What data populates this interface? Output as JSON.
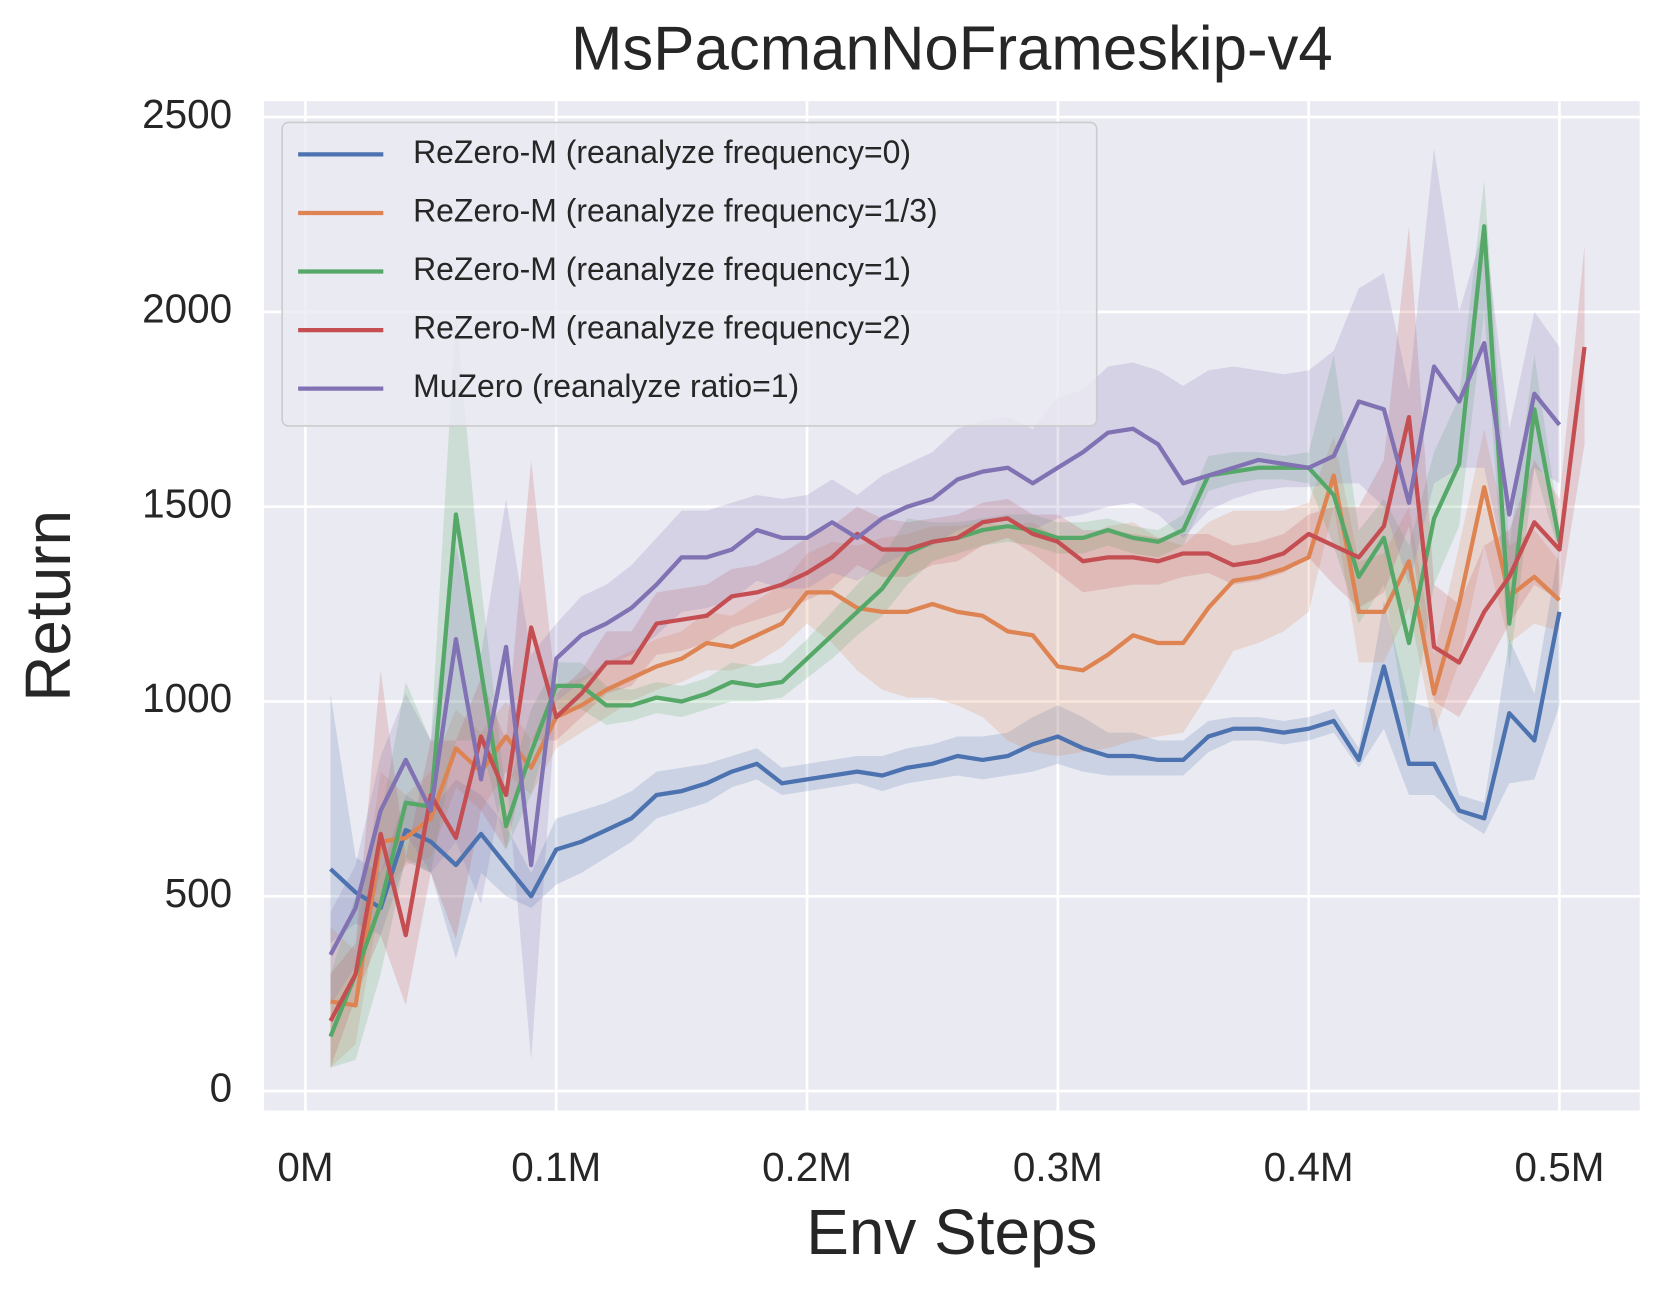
{
  "chart_data": {
    "type": "line",
    "title": "MsPacmanNoFrameskip-v4",
    "xlabel": "Env Steps",
    "ylabel": "Return",
    "x": [
      10000,
      20000,
      30000,
      40000,
      50000,
      60000,
      70000,
      80000,
      90000,
      100000,
      110000,
      120000,
      130000,
      140000,
      150000,
      160000,
      170000,
      180000,
      190000,
      200000,
      210000,
      220000,
      230000,
      240000,
      250000,
      260000,
      270000,
      280000,
      290000,
      300000,
      310000,
      320000,
      330000,
      340000,
      350000,
      360000,
      370000,
      380000,
      390000,
      400000,
      410000,
      420000,
      430000,
      440000,
      450000,
      460000,
      470000,
      480000,
      490000,
      500000,
      510000
    ],
    "xlim": [
      -16500,
      532000
    ],
    "xticks": [
      {
        "value": 0,
        "label": "0M"
      },
      {
        "value": 100000,
        "label": "0.1M"
      },
      {
        "value": 200000,
        "label": "0.2M"
      },
      {
        "value": 300000,
        "label": "0.3M"
      },
      {
        "value": 400000,
        "label": "0.4M"
      },
      {
        "value": 500000,
        "label": "0.5M"
      }
    ],
    "ylim": [
      -50,
      2541
    ],
    "yticks": [
      0,
      500,
      1000,
      1500,
      2000,
      2500
    ],
    "grid": true,
    "legend": "upper left",
    "background": "#eaeaf2",
    "series": [
      {
        "name": "ReZero-M (reanalyze frequency=0)",
        "color": "#4c72b0",
        "values": [
          570,
          510,
          470,
          670,
          640,
          580,
          660,
          580,
          500,
          620,
          640,
          670,
          700,
          760,
          770,
          790,
          820,
          840,
          790,
          800,
          810,
          820,
          810,
          830,
          840,
          860,
          850,
          860,
          890,
          910,
          880,
          860,
          860,
          850,
          850,
          910,
          930,
          930,
          920,
          930,
          950,
          850,
          1090,
          840,
          840,
          720,
          700,
          970,
          900,
          1230,
          null
        ],
        "lower": [
          380,
          430,
          400,
          590,
          560,
          340,
          560,
          500,
          470,
          530,
          560,
          600,
          640,
          700,
          720,
          740,
          780,
          800,
          760,
          770,
          780,
          790,
          770,
          790,
          800,
          810,
          800,
          810,
          820,
          840,
          820,
          810,
          810,
          810,
          810,
          870,
          900,
          900,
          890,
          900,
          920,
          830,
          930,
          760,
          760,
          700,
          660,
          790,
          800,
          990,
          null
        ],
        "upper": [
          1020,
          600,
          560,
          760,
          720,
          800,
          760,
          680,
          560,
          700,
          720,
          740,
          770,
          820,
          830,
          840,
          860,
          880,
          830,
          840,
          850,
          860,
          860,
          880,
          890,
          910,
          910,
          920,
          960,
          990,
          960,
          920,
          920,
          900,
          900,
          950,
          960,
          960,
          950,
          960,
          980,
          880,
          1260,
          1000,
          980,
          760,
          740,
          1160,
          1020,
          1400,
          null
        ]
      },
      {
        "name": "ReZero-M (reanalyze frequency=1/3)",
        "color": "#dd8452",
        "values": [
          230,
          220,
          640,
          650,
          700,
          880,
          820,
          910,
          830,
          960,
          990,
          1030,
          1060,
          1090,
          1110,
          1150,
          1140,
          1170,
          1200,
          1280,
          1280,
          1240,
          1230,
          1230,
          1250,
          1230,
          1220,
          1180,
          1170,
          1090,
          1080,
          1120,
          1170,
          1150,
          1150,
          1240,
          1310,
          1320,
          1340,
          1370,
          1580,
          1230,
          1230,
          1360,
          1020,
          1250,
          1550,
          1270,
          1320,
          1260,
          null
        ],
        "lower": [
          60,
          120,
          500,
          580,
          600,
          780,
          720,
          820,
          760,
          880,
          920,
          960,
          1000,
          1030,
          1050,
          1080,
          1080,
          1100,
          1140,
          1200,
          1150,
          1080,
          1030,
          1010,
          1010,
          990,
          960,
          900,
          870,
          860,
          870,
          880,
          900,
          910,
          920,
          1020,
          1130,
          1150,
          1180,
          1230,
          1500,
          1100,
          1100,
          1240,
          920,
          1100,
          1400,
          1150,
          1200,
          1180,
          null
        ],
        "upper": [
          420,
          360,
          820,
          760,
          820,
          980,
          920,
          1000,
          900,
          1040,
          1060,
          1100,
          1130,
          1160,
          1180,
          1230,
          1220,
          1260,
          1300,
          1380,
          1410,
          1400,
          1420,
          1430,
          1450,
          1450,
          1460,
          1450,
          1460,
          1420,
          1420,
          1450,
          1460,
          1420,
          1400,
          1460,
          1490,
          1490,
          1490,
          1510,
          1680,
          1360,
          1380,
          1500,
          1120,
          1400,
          1700,
          1400,
          1440,
          1360,
          null
        ]
      },
      {
        "name": "ReZero-M (reanalyze frequency=1)",
        "color": "#55a868",
        "values": [
          140,
          300,
          480,
          740,
          730,
          1480,
          1080,
          680,
          870,
          1040,
          1040,
          990,
          990,
          1010,
          1000,
          1020,
          1050,
          1040,
          1050,
          1110,
          1170,
          1230,
          1290,
          1380,
          1410,
          1420,
          1440,
          1450,
          1440,
          1420,
          1420,
          1440,
          1420,
          1410,
          1440,
          1580,
          1590,
          1600,
          1600,
          1600,
          1530,
          1320,
          1420,
          1150,
          1470,
          1610,
          2220,
          1200,
          1750,
          1410,
          null
        ],
        "lower": [
          60,
          80,
          300,
          600,
          560,
          900,
          900,
          620,
          760,
          980,
          980,
          940,
          950,
          970,
          960,
          980,
          1000,
          1000,
          1010,
          1060,
          1110,
          1170,
          1220,
          1300,
          1360,
          1380,
          1400,
          1410,
          1400,
          1380,
          1380,
          1400,
          1380,
          1370,
          1400,
          1540,
          1560,
          1570,
          1570,
          1560,
          1400,
          1200,
          1300,
          900,
          1300,
          1450,
          2000,
          1080,
          1600,
          1380,
          null
        ],
        "upper": [
          300,
          500,
          700,
          1050,
          900,
          2000,
          1300,
          760,
          980,
          1100,
          1100,
          1040,
          1030,
          1050,
          1040,
          1060,
          1100,
          1090,
          1100,
          1160,
          1230,
          1300,
          1370,
          1470,
          1460,
          1460,
          1470,
          1480,
          1480,
          1460,
          1460,
          1470,
          1450,
          1440,
          1480,
          1630,
          1640,
          1640,
          1630,
          1640,
          1890,
          1440,
          1520,
          1400,
          1640,
          1780,
          2340,
          1400,
          1890,
          1450,
          null
        ]
      },
      {
        "name": "ReZero-M (reanalyze frequency=2)",
        "color": "#c44e52",
        "values": [
          180,
          300,
          660,
          400,
          760,
          650,
          910,
          760,
          1190,
          960,
          1020,
          1100,
          1100,
          1200,
          1210,
          1220,
          1270,
          1280,
          1300,
          1330,
          1370,
          1430,
          1390,
          1390,
          1410,
          1420,
          1460,
          1470,
          1430,
          1410,
          1360,
          1370,
          1370,
          1360,
          1380,
          1380,
          1350,
          1360,
          1380,
          1430,
          1400,
          1370,
          1450,
          1730,
          1140,
          1100,
          1230,
          1320,
          1460,
          1390,
          1910
        ],
        "lower": [
          60,
          240,
          400,
          220,
          560,
          390,
          720,
          620,
          900,
          900,
          960,
          1020,
          1040,
          1120,
          1130,
          1150,
          1190,
          1210,
          1230,
          1260,
          1290,
          1350,
          1320,
          1320,
          1350,
          1360,
          1400,
          1420,
          1380,
          1330,
          1280,
          1290,
          1300,
          1300,
          1320,
          1330,
          1300,
          1310,
          1330,
          1370,
          1300,
          1240,
          1280,
          1450,
          1000,
          960,
          1080,
          1200,
          1300,
          1260,
          1660
        ],
        "upper": [
          300,
          380,
          1080,
          600,
          900,
          900,
          1060,
          900,
          1620,
          1020,
          1080,
          1180,
          1180,
          1280,
          1290,
          1300,
          1340,
          1350,
          1380,
          1420,
          1450,
          1500,
          1470,
          1460,
          1470,
          1480,
          1510,
          1520,
          1480,
          1480,
          1440,
          1440,
          1430,
          1420,
          1430,
          1430,
          1400,
          1410,
          1430,
          1480,
          1500,
          1500,
          1620,
          2220,
          1300,
          1250,
          1400,
          1440,
          1620,
          1520,
          2170
        ]
      },
      {
        "name": "MuZero (reanalyze ratio=1)",
        "color": "#8172b3",
        "values": [
          350,
          470,
          720,
          850,
          720,
          1160,
          800,
          1140,
          580,
          1110,
          1170,
          1200,
          1240,
          1300,
          1370,
          1370,
          1390,
          1440,
          1420,
          1420,
          1460,
          1420,
          1470,
          1500,
          1520,
          1570,
          1590,
          1600,
          1560,
          1600,
          1640,
          1690,
          1700,
          1660,
          1560,
          1580,
          1600,
          1620,
          1610,
          1600,
          1630,
          1770,
          1750,
          1510,
          1860,
          1770,
          1920,
          1480,
          1790,
          1710,
          null
        ],
        "lower": [
          220,
          320,
          560,
          660,
          560,
          640,
          480,
          820,
          80,
          1000,
          1050,
          1090,
          1120,
          1170,
          1230,
          1240,
          1260,
          1310,
          1290,
          1290,
          1330,
          1310,
          1350,
          1380,
          1400,
          1440,
          1460,
          1470,
          1440,
          1470,
          1480,
          1500,
          1510,
          1480,
          1420,
          1490,
          1520,
          1540,
          1550,
          1550,
          1560,
          1560,
          1500,
          1300,
          1560,
          1600,
          1600,
          1300,
          1600,
          1560,
          null
        ],
        "upper": [
          460,
          580,
          860,
          1020,
          900,
          1400,
          1120,
          1520,
          1120,
          1200,
          1270,
          1300,
          1350,
          1420,
          1490,
          1490,
          1510,
          1530,
          1520,
          1530,
          1570,
          1530,
          1580,
          1610,
          1640,
          1700,
          1720,
          1730,
          1700,
          1780,
          1800,
          1860,
          1870,
          1850,
          1810,
          1850,
          1860,
          1850,
          1840,
          1850,
          1900,
          2060,
          2100,
          1800,
          2420,
          2000,
          2220,
          1700,
          2000,
          1910,
          null
        ]
      }
    ]
  }
}
